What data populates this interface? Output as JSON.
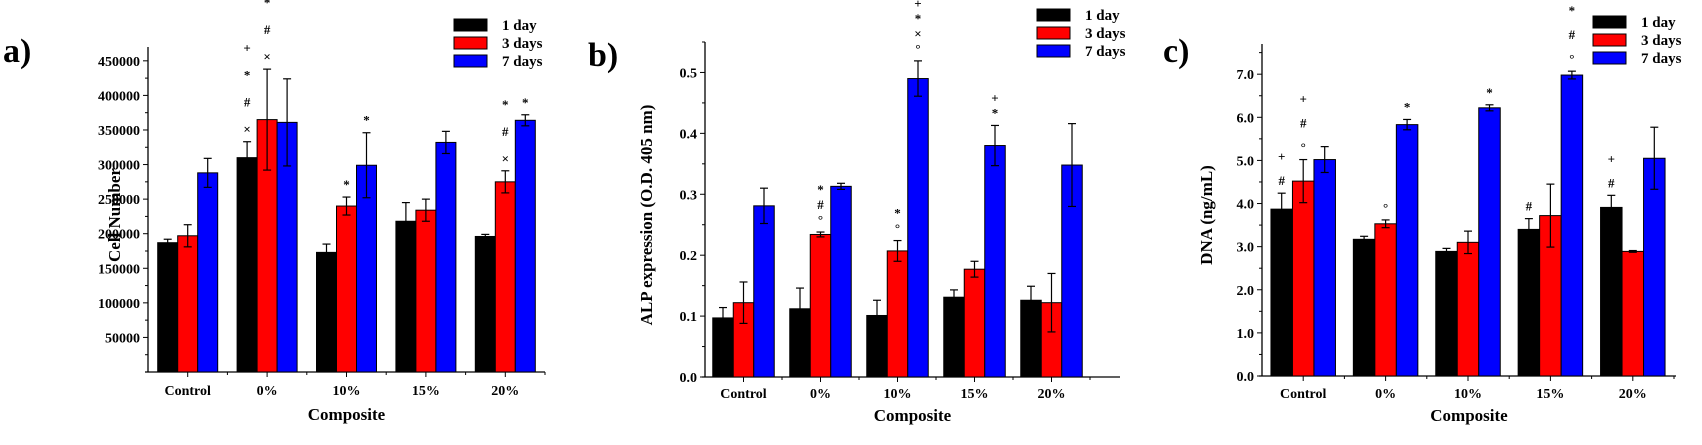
{
  "chart_data": [
    {
      "type": "bar",
      "panel_label": "a)",
      "title": "",
      "xlabel": "Composite",
      "ylabel": "Cell Number",
      "ylim": [
        0,
        470000
      ],
      "yticks": [
        50000,
        100000,
        150000,
        200000,
        250000,
        300000,
        350000,
        400000,
        450000
      ],
      "ytick_labels": [
        "50000",
        "100000",
        "150000",
        "200000",
        "250000",
        "300000",
        "350000",
        "400000",
        "450000"
      ],
      "categories": [
        "Control",
        "0%",
        "10%",
        "15%",
        "20%"
      ],
      "legend": {
        "position": "top-right",
        "entries": [
          "1 day",
          "3 days",
          "7 days"
        ]
      },
      "series": [
        {
          "name": "1 day",
          "color": "#000000",
          "values": [
            187000,
            310000,
            173000,
            218000,
            196000
          ],
          "errors": [
            5000,
            23000,
            12000,
            27000,
            3000
          ],
          "annotations": [
            [],
            [
              "+",
              "*",
              "#",
              "×"
            ],
            [],
            [],
            []
          ]
        },
        {
          "name": "3 days",
          "color": "#ff0000",
          "values": [
            197000,
            365000,
            240000,
            234000,
            275000
          ],
          "errors": [
            16000,
            73000,
            13000,
            16000,
            16000
          ],
          "annotations": [
            [],
            [
              "*",
              "#",
              "×"
            ],
            [
              "*"
            ],
            [],
            [
              "*",
              "#",
              "×"
            ]
          ]
        },
        {
          "name": "7 days",
          "color": "#0000ff",
          "values": [
            288000,
            361000,
            299000,
            332000,
            364000
          ],
          "errors": [
            21000,
            63000,
            47000,
            16000,
            8000
          ],
          "annotations": [
            [],
            [],
            [
              "*"
            ],
            [],
            [
              "*"
            ]
          ]
        }
      ]
    },
    {
      "type": "bar",
      "panel_label": "b)",
      "title": "",
      "xlabel": "Composite",
      "ylabel": "ALP expression (O.D. 405 nm)",
      "ylim": [
        0,
        0.55
      ],
      "yticks": [
        0.0,
        0.1,
        0.2,
        0.3,
        0.4,
        0.5
      ],
      "ytick_labels": [
        "0.0",
        "0.1",
        "0.2",
        "0.3",
        "0.4",
        "0.5"
      ],
      "categories": [
        "Control",
        "0%",
        "10%",
        "15%",
        "20%"
      ],
      "legend": {
        "position": "top-right",
        "entries": [
          "1 day",
          "3 days",
          "7 days"
        ]
      },
      "series": [
        {
          "name": "1 day",
          "color": "#000000",
          "values": [
            0.097,
            0.112,
            0.101,
            0.131,
            0.126
          ],
          "errors": [
            0.017,
            0.034,
            0.025,
            0.012,
            0.023
          ],
          "annotations": [
            [],
            [],
            [],
            [],
            []
          ]
        },
        {
          "name": "3 days",
          "color": "#ff0000",
          "values": [
            0.122,
            0.234,
            0.207,
            0.177,
            0.122
          ],
          "errors": [
            0.034,
            0.004,
            0.017,
            0.013,
            0.048
          ],
          "annotations": [
            [],
            [
              "*",
              "#",
              "°"
            ],
            [
              "*",
              "°"
            ],
            [],
            []
          ]
        },
        {
          "name": "7 days",
          "color": "#0000ff",
          "values": [
            0.281,
            0.313,
            0.49,
            0.38,
            0.348
          ],
          "errors": [
            0.029,
            0.005,
            0.029,
            0.033,
            0.068
          ],
          "annotations": [
            [],
            [],
            [
              "+",
              "*",
              "×",
              "°"
            ],
            [
              "+",
              "*"
            ],
            []
          ]
        }
      ]
    },
    {
      "type": "bar",
      "panel_label": "c)",
      "title": "",
      "xlabel": "Composite",
      "ylabel": "DNA (ng/mL)",
      "ylim": [
        0,
        7.7
      ],
      "yticks": [
        0.0,
        1.0,
        2.0,
        3.0,
        4.0,
        5.0,
        6.0,
        7.0
      ],
      "ytick_labels": [
        "0.0",
        "1.0",
        "2.0",
        "3.0",
        "4.0",
        "5.0",
        "6.0",
        "7.0"
      ],
      "categories": [
        "Control",
        "0%",
        "10%",
        "15%",
        "20%"
      ],
      "legend": {
        "position": "top-right",
        "entries": [
          "1 day",
          "3 days",
          "7 days"
        ]
      },
      "series": [
        {
          "name": "1 day",
          "color": "#000000",
          "values": [
            3.87,
            3.17,
            2.89,
            3.4,
            3.91
          ],
          "errors": [
            0.37,
            0.07,
            0.07,
            0.25,
            0.28
          ],
          "annotations": [
            [
              "+",
              "#"
            ],
            [],
            [],
            [
              "#"
            ],
            [
              "+",
              "#"
            ]
          ]
        },
        {
          "name": "3 days",
          "color": "#ff0000",
          "values": [
            4.52,
            3.53,
            3.1,
            3.72,
            2.89
          ],
          "errors": [
            0.5,
            0.09,
            0.26,
            0.73,
            0.02
          ],
          "annotations": [
            [
              "+",
              "#",
              "°"
            ],
            [
              "°"
            ],
            [],
            [],
            []
          ]
        },
        {
          "name": "7 days",
          "color": "#0000ff",
          "values": [
            5.02,
            5.83,
            6.22,
            6.98,
            5.05
          ],
          "errors": [
            0.3,
            0.12,
            0.07,
            0.09,
            0.72
          ],
          "annotations": [
            [],
            [
              "*"
            ],
            [
              "*"
            ],
            [
              "+",
              "*",
              "#",
              "°"
            ],
            []
          ]
        }
      ]
    }
  ]
}
